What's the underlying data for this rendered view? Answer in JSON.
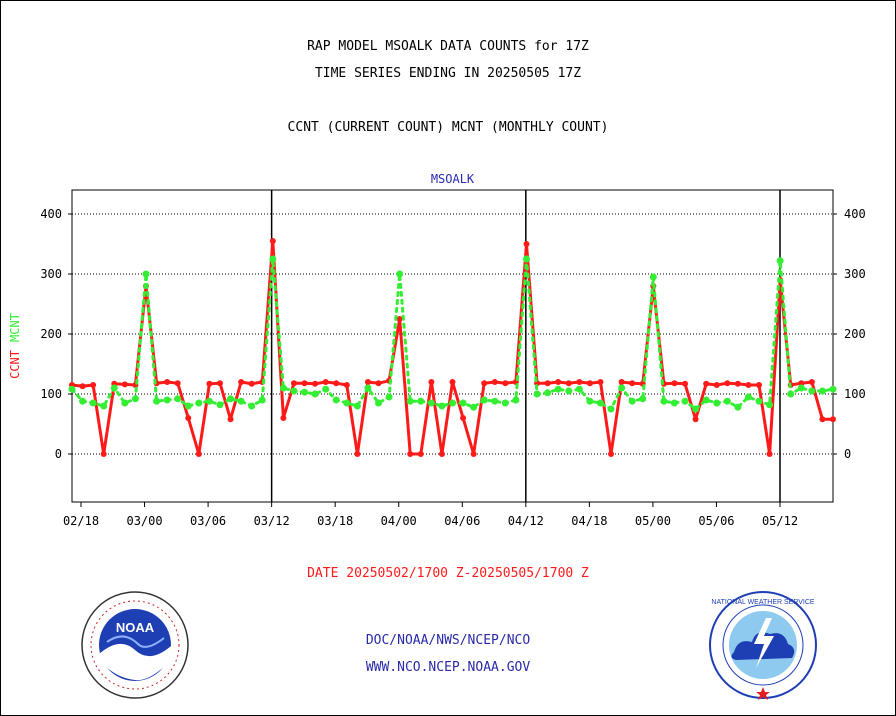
{
  "header": {
    "title1": "RAP MODEL MSOALK DATA COUNTS for 17Z",
    "title2": "TIME SERIES ENDING IN 20250505 17Z",
    "subtitle": "CCNT (CURRENT COUNT) MCNT (MONTHLY COUNT)"
  },
  "footer": {
    "date_range": "DATE 20250502/1700 Z-20250505/1700 Z",
    "org": "DOC/NOAA/NWS/NCEP/NCO",
    "url": "WWW.NCO.NCEP.NOAA.GOV"
  },
  "logos": {
    "noaa_text": "NOAA",
    "nws_text": "NATIONAL WEATHER SERVICE"
  },
  "colors": {
    "ccnt": "#ff1a1a",
    "mcnt": "#33ee33",
    "station": "#2a2ab0",
    "axis": "#000000"
  },
  "chart_data": {
    "type": "line",
    "title": "MSOALK",
    "ylabel_parts": [
      "CCNT",
      "MCNT"
    ],
    "ylim": [
      -80,
      440
    ],
    "yticks": [
      0,
      100,
      200,
      300,
      400
    ],
    "grid": true,
    "x_tick_labels": [
      "02/18",
      "03/00",
      "03/06",
      "03/12",
      "03/18",
      "04/00",
      "04/06",
      "04/12",
      "04/18",
      "05/00",
      "05/06",
      "05/12"
    ],
    "day_markers": [
      "03/12",
      "04/12",
      "05/12"
    ],
    "series": [
      {
        "name": "CCNT",
        "values": [
          115,
          113,
          115,
          0,
          117,
          116,
          115,
          280,
          118,
          120,
          118,
          60,
          0,
          117,
          118,
          58,
          120,
          117,
          120,
          355,
          60,
          118,
          118,
          117,
          120,
          118,
          115,
          0,
          120,
          118,
          122,
          225,
          0,
          0,
          120,
          0,
          120,
          60,
          0,
          118,
          120,
          118,
          120,
          350,
          118,
          118,
          120,
          118,
          120,
          118,
          120,
          0,
          120,
          118,
          117,
          280,
          117,
          118,
          117,
          58,
          117,
          115,
          118,
          117,
          115,
          115,
          0,
          290,
          115,
          118,
          120,
          58,
          58
        ]
      },
      {
        "name": "MCNT",
        "values": [
          108,
          88,
          85,
          80,
          110,
          85,
          92,
          300,
          88,
          90,
          92,
          80,
          85,
          88,
          82,
          92,
          88,
          80,
          90,
          325,
          110,
          105,
          103,
          100,
          108,
          90,
          85,
          80,
          110,
          85,
          95,
          300,
          88,
          88,
          85,
          80,
          85,
          85,
          78,
          90,
          88,
          85,
          90,
          325,
          100,
          102,
          108,
          105,
          108,
          88,
          85,
          75,
          110,
          88,
          92,
          295,
          88,
          85,
          88,
          75,
          90,
          85,
          88,
          78,
          95,
          88,
          82,
          322,
          100,
          110,
          105,
          105,
          108
        ]
      }
    ]
  }
}
